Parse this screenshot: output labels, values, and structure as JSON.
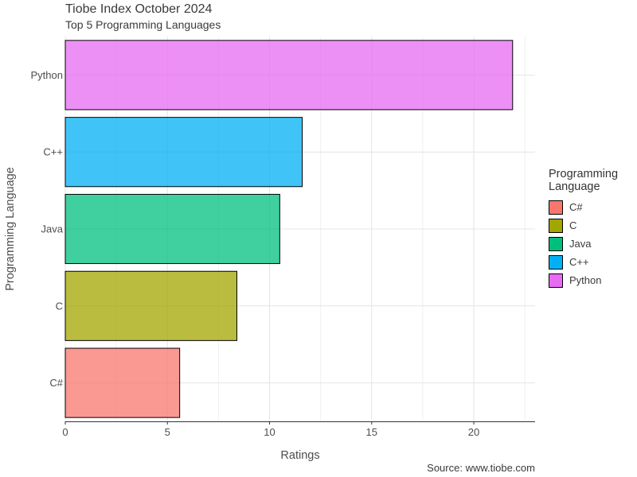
{
  "title": "Tiobe Index October 2024",
  "subtitle": "Top 5 Programming Languages",
  "caption": "Source: www.tiobe.com",
  "chart_data": {
    "type": "bar",
    "orientation": "horizontal",
    "categories": [
      "C#",
      "C",
      "Java",
      "C++",
      "Python"
    ],
    "values": [
      5.6,
      8.4,
      10.5,
      11.6,
      21.9
    ],
    "colors": [
      "#F8766D",
      "#A3A500",
      "#00BF7D",
      "#00B0F6",
      "#E76BF3"
    ],
    "xlabel": "Ratings",
    "ylabel": "Programming Language",
    "xlim": [
      0,
      23
    ],
    "xticks": [
      0,
      5,
      10,
      15,
      20
    ],
    "grid": true,
    "legend": {
      "title": "Programming Language",
      "placement": "right",
      "entries": [
        "C#",
        "C",
        "Java",
        "C++",
        "Python"
      ]
    }
  }
}
